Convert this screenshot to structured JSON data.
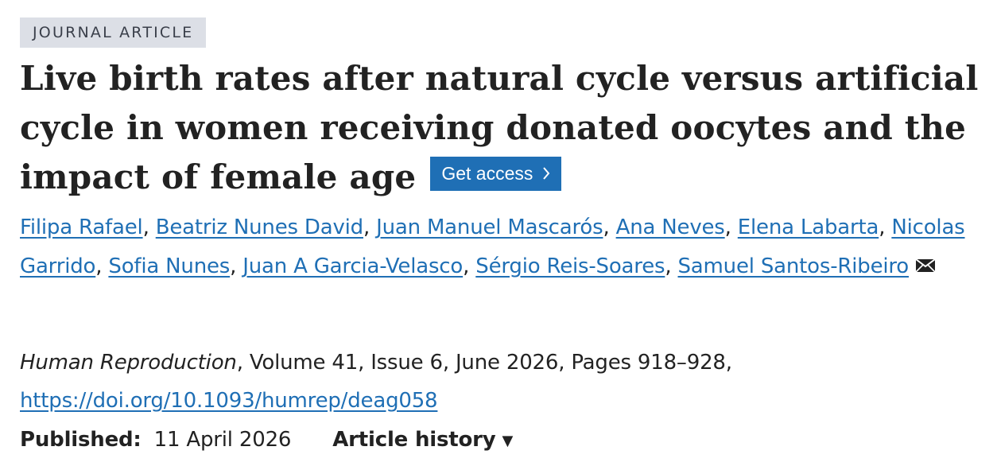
{
  "article": {
    "type_badge": "JOURNAL ARTICLE",
    "title": "Live birth rates after natural cycle versus artificial cycle in women receiving donated oocytes and the impact of female age",
    "get_access_label": "Get access",
    "authors": [
      "Filipa Rafael",
      "Beatriz Nunes David",
      "Juan Manuel Mascarós",
      "Ana Neves",
      "Elena Labarta",
      "Nicolas Garrido",
      "Sofia Nunes",
      "Juan A Garcia-Velasco",
      "Sérgio Reis-Soares",
      "Samuel Santos-Ribeiro"
    ],
    "corresponding_icon": "envelope-icon"
  },
  "citation": {
    "journal": "Human Reproduction",
    "details": ", Volume 41, Issue 6, June 2026, Pages 918–928,",
    "doi": "https://doi.org/10.1093/humrep/deag058"
  },
  "publication": {
    "published_label": "Published:",
    "published_date": "11 April 2026",
    "history_label": "Article history",
    "history_caret_icon": "caret-down-icon"
  },
  "colors": {
    "link": "#1f6fb5",
    "button": "#1f6fb5",
    "badge_bg": "#dcdfe6",
    "text": "#222222"
  }
}
